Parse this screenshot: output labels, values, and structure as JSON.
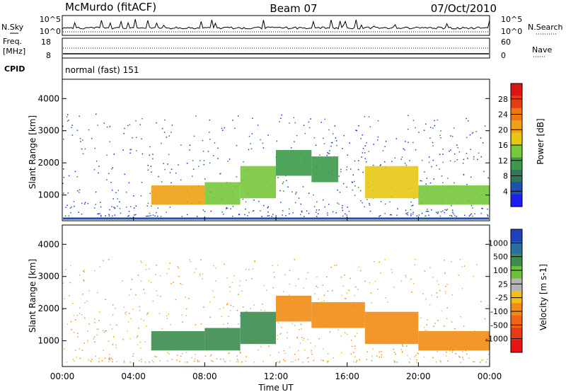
{
  "header": {
    "station": "McMurdo (fitACF)",
    "beam": "Beam 07",
    "date": "07/Oct/2010"
  },
  "top_panels": {
    "nsky_label": "N.Sky",
    "nsearch_label": "N.Search",
    "freq_label": "Freq.",
    "freq_unit": "[MHz]",
    "nave_label": "Nave",
    "cpid_label": "CPID",
    "cpid_value": "normal (fast) 151",
    "noise_ticks_left": [
      "10^5",
      "10^0"
    ],
    "noise_ticks_right": [
      "10^5",
      "10^0"
    ],
    "freq_ticks": [
      "18",
      "8"
    ],
    "nave_ticks": [
      "60",
      "0"
    ]
  },
  "chart_data": [
    {
      "type": "heatmap",
      "name": "power",
      "ylabel": "Slant Range [km]",
      "ylim": [
        200,
        4600
      ],
      "yticks": [
        1000,
        2000,
        3000,
        4000
      ],
      "colorbar_label": "Power [dB]",
      "colorbar_ticks": [
        4,
        8,
        12,
        16,
        20,
        24,
        28
      ],
      "colorbar_range": [
        0,
        32
      ],
      "colors": [
        "#1e1ef0",
        "#2050b0",
        "#2d7a5a",
        "#3c9a4a",
        "#78c83c",
        "#e6c814",
        "#f0a014",
        "#f07814",
        "#e63c14",
        "#dc1414"
      ],
      "bands": [
        {
          "x": [
            5.0,
            8.0
          ],
          "y": [
            700,
            1300
          ],
          "level": 20
        },
        {
          "x": [
            8.0,
            10.0
          ],
          "y": [
            700,
            1400
          ],
          "level": 14
        },
        {
          "x": [
            10.0,
            12.0
          ],
          "y": [
            900,
            1900
          ],
          "level": 14
        },
        {
          "x": [
            12.0,
            14.0
          ],
          "y": [
            1600,
            2400
          ],
          "level": 12
        },
        {
          "x": [
            14.0,
            15.5
          ],
          "y": [
            1400,
            2200
          ],
          "level": 12
        },
        {
          "x": [
            17.0,
            20.0
          ],
          "y": [
            900,
            1900
          ],
          "level": 18
        },
        {
          "x": [
            20.0,
            24.0
          ],
          "y": [
            700,
            1300
          ],
          "level": 14
        }
      ]
    },
    {
      "type": "heatmap",
      "name": "velocity",
      "ylabel": "Slant Range [km]",
      "ylim": [
        200,
        4600
      ],
      "yticks": [
        1000,
        2000,
        3000,
        4000
      ],
      "colorbar_label": "Velocity [m s-1]",
      "colorbar_ticks": [
        1000,
        500,
        100,
        25,
        -25,
        -100,
        -500,
        -1000
      ],
      "colors": [
        "#2040c0",
        "#2870a0",
        "#3c8c50",
        "#6cc03c",
        "#b4b4b4",
        "#f0c014",
        "#f08c14",
        "#f06414",
        "#e63c14",
        "#e61414"
      ],
      "bands": [
        {
          "x": [
            5.0,
            8.0
          ],
          "y": [
            700,
            1300
          ],
          "velocity": 300
        },
        {
          "x": [
            8.0,
            10.0
          ],
          "y": [
            700,
            1400
          ],
          "velocity": 200
        },
        {
          "x": [
            10.0,
            12.0
          ],
          "y": [
            900,
            1900
          ],
          "velocity": 150
        },
        {
          "x": [
            12.0,
            14.0
          ],
          "y": [
            1600,
            2400
          ],
          "velocity": -150
        },
        {
          "x": [
            14.0,
            17.0
          ],
          "y": [
            1400,
            2200
          ],
          "velocity": -200
        },
        {
          "x": [
            17.0,
            20.0
          ],
          "y": [
            900,
            1900
          ],
          "velocity": -200
        },
        {
          "x": [
            20.0,
            24.0
          ],
          "y": [
            700,
            1300
          ],
          "velocity": -200
        }
      ]
    }
  ],
  "time_axis": {
    "xlabel": "Time UT",
    "xlim": [
      0,
      24
    ],
    "ticks": [
      "00:00",
      "04:00",
      "08:00",
      "12:00",
      "16:00",
      "20:00",
      "00:00"
    ]
  }
}
